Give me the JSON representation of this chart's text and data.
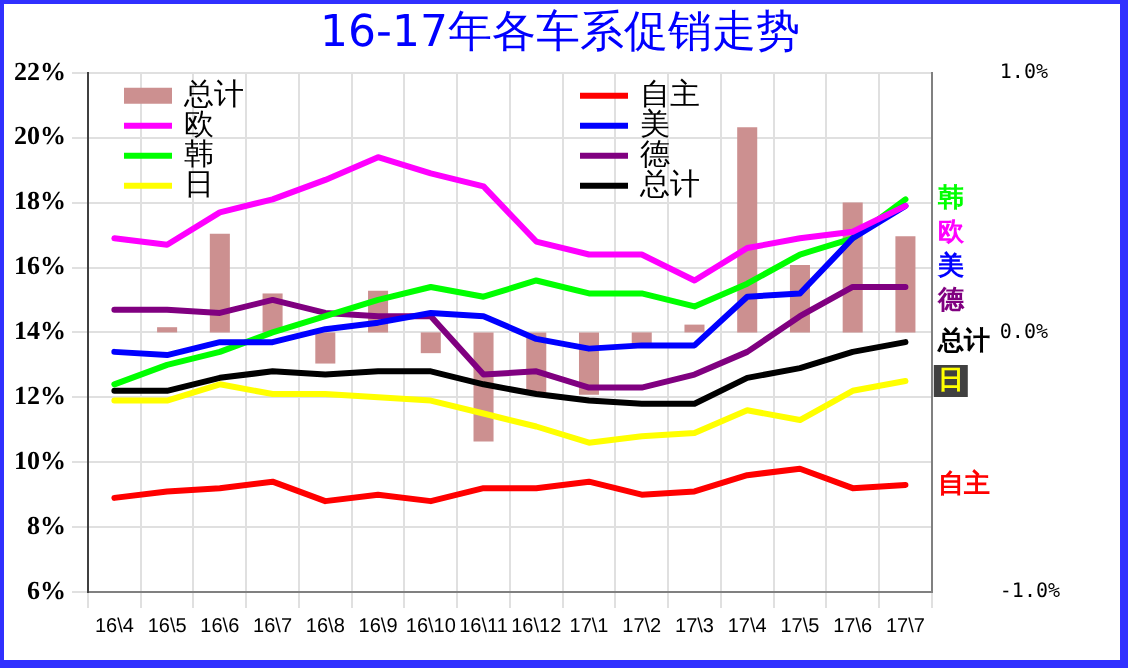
{
  "chart_data": {
    "type": "line",
    "title": "16-17年各车系促销走势",
    "categories": [
      "16\\4",
      "16\\5",
      "16\\6",
      "16\\7",
      "16\\8",
      "16\\9",
      "16\\10",
      "16\\11",
      "16\\12",
      "17\\1",
      "17\\2",
      "17\\3",
      "17\\4",
      "17\\5",
      "17\\6",
      "17\\7"
    ],
    "series": [
      {
        "name": "总计",
        "type": "bar",
        "axis": "y2",
        "color": "#cc9090",
        "values": [
          0,
          0.02,
          0.38,
          0.15,
          -0.12,
          0.16,
          -0.08,
          -0.42,
          -0.23,
          -0.24,
          -0.05,
          0.03,
          0.79,
          0.26,
          0.5,
          0.37
        ]
      },
      {
        "name": "自主",
        "color": "#ff0000",
        "values": [
          8.9,
          9.1,
          9.2,
          9.4,
          8.8,
          9.0,
          8.8,
          9.2,
          9.2,
          9.4,
          9.0,
          9.1,
          9.6,
          9.8,
          9.2,
          9.3
        ]
      },
      {
        "name": "欧",
        "color": "#ff00ff",
        "values": [
          16.9,
          16.7,
          17.7,
          18.1,
          18.7,
          19.4,
          18.9,
          18.5,
          16.8,
          16.4,
          16.4,
          15.6,
          16.6,
          16.9,
          17.1,
          17.9
        ]
      },
      {
        "name": "美",
        "color": "#0000ff",
        "values": [
          13.4,
          13.3,
          13.7,
          13.7,
          14.1,
          14.3,
          14.6,
          14.5,
          13.8,
          13.5,
          13.6,
          13.6,
          15.1,
          15.2,
          16.9,
          17.9
        ]
      },
      {
        "name": "韩",
        "color": "#00ff00",
        "values": [
          12.4,
          13.0,
          13.4,
          14.0,
          14.5,
          15.0,
          15.4,
          15.1,
          15.6,
          15.2,
          15.2,
          14.8,
          15.5,
          16.4,
          16.9,
          18.1
        ]
      },
      {
        "name": "德",
        "color": "#800080",
        "values": [
          14.7,
          14.7,
          14.6,
          15.0,
          14.6,
          14.5,
          14.5,
          12.7,
          12.8,
          12.3,
          12.3,
          12.7,
          13.4,
          14.5,
          15.4,
          15.4
        ]
      },
      {
        "name": "日",
        "color": "#ffff00",
        "values": [
          11.9,
          11.9,
          12.4,
          12.1,
          12.1,
          12.0,
          11.9,
          11.5,
          11.1,
          10.6,
          10.8,
          10.9,
          11.6,
          11.3,
          12.2,
          12.5
        ]
      },
      {
        "name": "总计",
        "color": "#000000",
        "values": [
          12.2,
          12.2,
          12.6,
          12.8,
          12.7,
          12.8,
          12.8,
          12.4,
          12.1,
          11.9,
          11.8,
          11.8,
          12.6,
          12.9,
          13.4,
          13.7
        ]
      }
    ],
    "ylim": [
      6,
      22
    ],
    "yticks": [
      {
        "value": 6,
        "label": "6%"
      },
      {
        "value": 8,
        "label": "8%"
      },
      {
        "value": 10,
        "label": "10%"
      },
      {
        "value": 12,
        "label": "12%"
      },
      {
        "value": 14,
        "label": "14%"
      },
      {
        "value": 16,
        "label": "16%"
      },
      {
        "value": 18,
        "label": "18%"
      },
      {
        "value": 20,
        "label": "20%"
      },
      {
        "value": 22,
        "label": "22%"
      }
    ],
    "y2lim": [
      -1,
      1
    ],
    "y2ticks": [
      {
        "value": -1,
        "label": "-1.0%"
      },
      {
        "value": 0,
        "label": "0.0%"
      },
      {
        "value": 1,
        "label": "1.0%"
      }
    ],
    "grid": true,
    "legend": "top left",
    "marker": "none",
    "line_style": "solid"
  }
}
